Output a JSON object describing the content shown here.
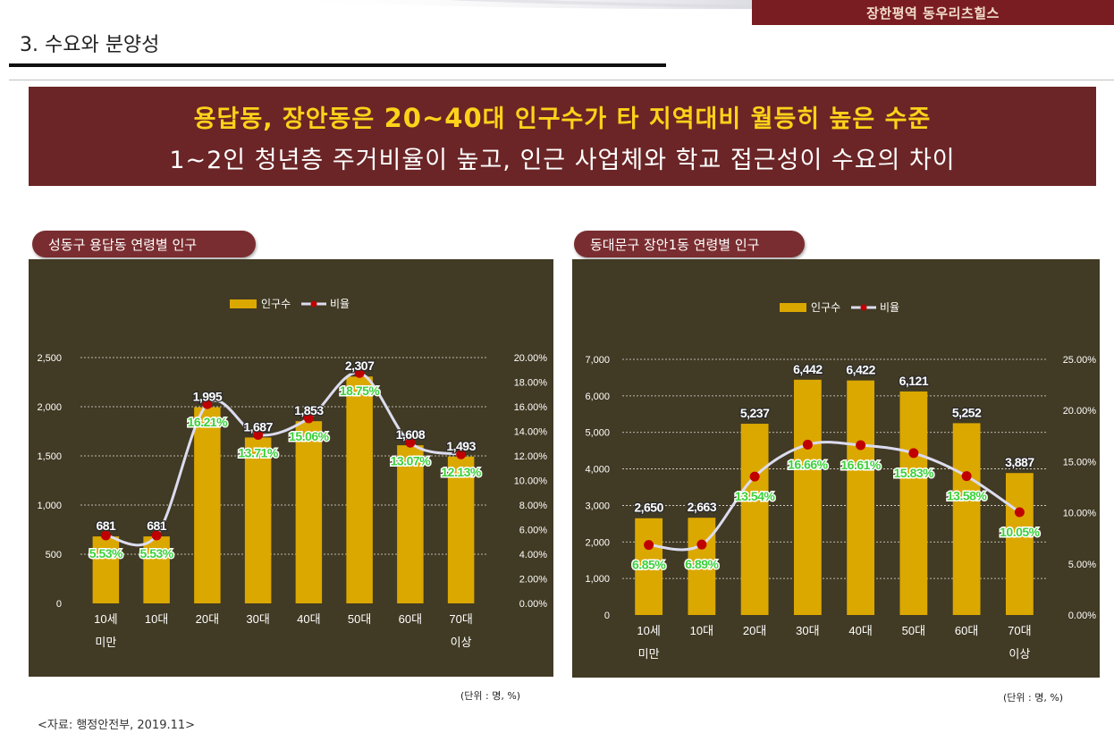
{
  "header": {
    "brand": "장한평역 동우리츠힐스",
    "section_title": "3. 수요와 분양성"
  },
  "banner": {
    "line1": "용답동, 장안동은 20~40대 인구수가 타 지역대비 월등히 높은 수준",
    "line2": "1~2인 청년층 주거비율이 높고, 인근 사업체와 학교 접근성이 수요의 차이"
  },
  "colors": {
    "banner_bg": "#6b2526",
    "banner_highlight": "#ffd21a",
    "panel_bg": "#413a24",
    "bar": "#dba800",
    "line": "#dcdcf0",
    "marker": "#c00000",
    "ratio_label": "#3dd13d"
  },
  "legend": {
    "bar_label": "인구수",
    "line_label": "비율"
  },
  "chart_data": [
    {
      "type": "bar",
      "title": "성동구 용답동 연령별 인구",
      "categories": [
        "10세|미만",
        "10대",
        "20대",
        "30대",
        "40대",
        "50대",
        "60대",
        "70대|이상"
      ],
      "series": [
        {
          "name": "인구수",
          "type": "bar",
          "values": [
            681,
            681,
            1995,
            1687,
            1853,
            2307,
            1608,
            1493
          ],
          "labels": [
            "681",
            "681",
            "1,995",
            "1,687",
            "1,853",
            "2,307",
            "1,608",
            "1,493"
          ]
        },
        {
          "name": "비율",
          "type": "line",
          "values": [
            5.53,
            5.53,
            16.21,
            13.71,
            15.06,
            18.75,
            13.07,
            12.13
          ],
          "labels": [
            "5.53%",
            "5.53%",
            "16.21%",
            "13.71%",
            "15.06%",
            "18.75%",
            "13.07%",
            "12.13%"
          ]
        }
      ],
      "y_left": {
        "ticks": [
          0,
          500,
          1000,
          1500,
          2000,
          2500
        ],
        "tick_labels": [
          "0",
          "500",
          "1,000",
          "1,500",
          "2,000",
          "2,500"
        ],
        "range": [
          0,
          2500
        ]
      },
      "y_right": {
        "ticks": [
          0,
          2,
          4,
          6,
          8,
          10,
          12,
          14,
          16,
          18,
          20
        ],
        "tick_labels": [
          "0.00%",
          "2.00%",
          "4.00%",
          "6.00%",
          "8.00%",
          "10.00%",
          "12.00%",
          "14.00%",
          "16.00%",
          "18.00%",
          "20.00%"
        ],
        "range": [
          0,
          20
        ]
      },
      "unit_note": "(단위 : 명, %)"
    },
    {
      "type": "bar",
      "title": "동대문구 장안1동 연령별 인구",
      "categories": [
        "10세|미만",
        "10대",
        "20대",
        "30대",
        "40대",
        "50대",
        "60대",
        "70대|이상"
      ],
      "series": [
        {
          "name": "인구수",
          "type": "bar",
          "values": [
            2650,
            2663,
            5237,
            6442,
            6422,
            6121,
            5252,
            3887
          ],
          "labels": [
            "2,650",
            "2,663",
            "5,237",
            "6,442",
            "6,422",
            "6,121",
            "5,252",
            "3,887"
          ]
        },
        {
          "name": "비율",
          "type": "line",
          "values": [
            6.85,
            6.89,
            13.54,
            16.66,
            16.61,
            15.83,
            13.58,
            10.05
          ],
          "labels": [
            "6.85%",
            "6.89%",
            "13.54%",
            "16.66%",
            "16.61%",
            "15.83%",
            "13.58%",
            "10.05%"
          ]
        }
      ],
      "y_left": {
        "ticks": [
          0,
          1000,
          2000,
          3000,
          4000,
          5000,
          6000,
          7000
        ],
        "tick_labels": [
          "0",
          "1,000",
          "2,000",
          "3,000",
          "4,000",
          "5,000",
          "6,000",
          "7,000"
        ],
        "range": [
          0,
          7000
        ]
      },
      "y_right": {
        "ticks": [
          0,
          5,
          10,
          15,
          20,
          25
        ],
        "tick_labels": [
          "0.00%",
          "5.00%",
          "10.00%",
          "15.00%",
          "20.00%",
          "25.00%"
        ],
        "range": [
          0,
          25
        ]
      },
      "unit_note": "(단위 : 명, %)"
    }
  ],
  "source_note": "<자료: 행정안전부, 2019.11>"
}
